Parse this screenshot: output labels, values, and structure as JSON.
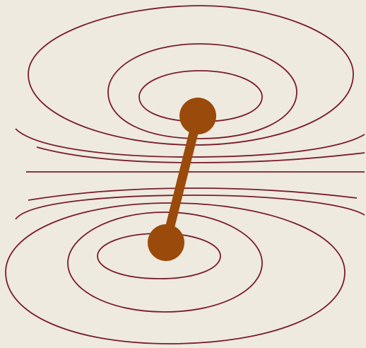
{
  "colors": {
    "background": "#eeeadf",
    "field_line": "#7a1c2b",
    "dipole": "#9a4a0a"
  },
  "diagram": {
    "upper_contours": 3,
    "lower_contours": 3,
    "open_lines_per_side": 2,
    "has_separatrix_line": true,
    "dipole_poles": 2
  }
}
